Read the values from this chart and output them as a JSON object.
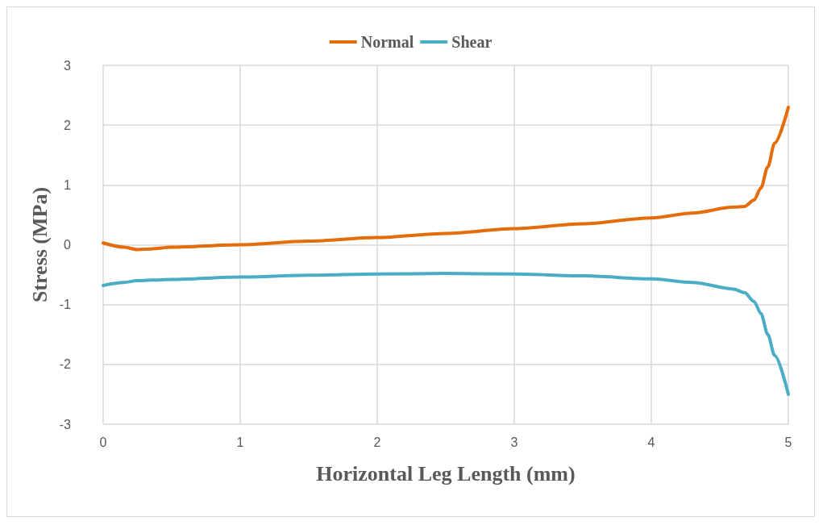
{
  "chart_data": {
    "type": "line",
    "xlabel": "Horizontal Leg Length (mm)",
    "ylabel": "Stress (MPa)",
    "xlim": [
      0,
      5
    ],
    "xticks": [
      0,
      1,
      2,
      3,
      4,
      5
    ],
    "ylim": [
      -3,
      3
    ],
    "yticks": [
      -3,
      -2,
      -1,
      0,
      1,
      2,
      3
    ],
    "grid": true,
    "legend": "top",
    "marker": "none",
    "line_style": "solid",
    "x": [
      0,
      0.15,
      0.25,
      0.35,
      0.5,
      1,
      1.5,
      2,
      2.5,
      3,
      3.5,
      4,
      4.3,
      4.6,
      4.68,
      4.75,
      4.8,
      4.85,
      4.9,
      5
    ],
    "series": [
      {
        "name": "Normal",
        "color": "#e46c0a",
        "values": [
          0.03,
          -0.04,
          -0.08,
          -0.07,
          -0.04,
          0,
          0.06,
          0.12,
          0.19,
          0.27,
          0.35,
          0.45,
          0.53,
          0.63,
          0.64,
          0.75,
          0.95,
          1.3,
          1.7,
          2.3
        ]
      },
      {
        "name": "Shear",
        "color": "#4bacc6",
        "values": [
          -0.68,
          -0.63,
          -0.6,
          -0.59,
          -0.58,
          -0.54,
          -0.51,
          -0.49,
          -0.48,
          -0.49,
          -0.52,
          -0.57,
          -0.63,
          -0.74,
          -0.8,
          -0.95,
          -1.15,
          -1.5,
          -1.85,
          -2.5
        ]
      }
    ]
  }
}
